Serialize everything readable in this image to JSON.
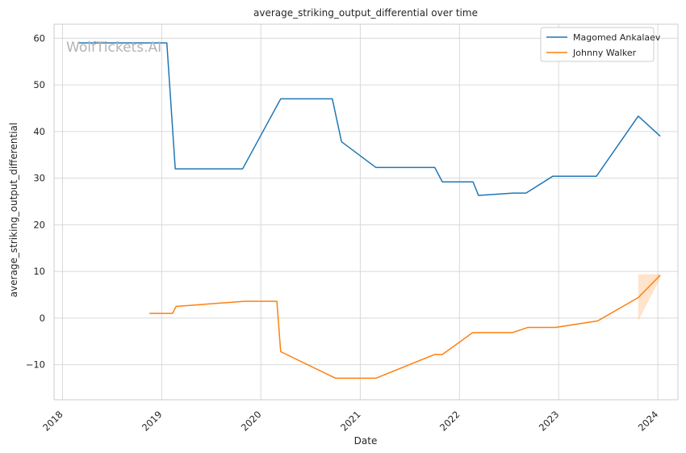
{
  "chart_data": {
    "type": "line",
    "title": "average_striking_output_differential over time",
    "xlabel": "Date",
    "ylabel": "average_striking_output_differential",
    "watermark": "WolfTickets.AI",
    "x_ticks": [
      "2018",
      "2019",
      "2020",
      "2021",
      "2022",
      "2023",
      "2024"
    ],
    "y_ticks": [
      "60",
      "50",
      "40",
      "30",
      "20",
      "10",
      "0",
      "−10"
    ],
    "xlim": [
      "2017-12-01",
      "2024-03-15"
    ],
    "ylim": [
      -17.5,
      63
    ],
    "grid": true,
    "legend_position": "top-right",
    "colors": {
      "ankalaev": "#1f77b4",
      "walker": "#ff7f0e",
      "band": "#ff7f0e",
      "grid": "#d9d9d9",
      "frame": "#cccccc"
    },
    "series": [
      {
        "name": "Magomed Ankalaev",
        "color": "#1f77b4",
        "points": [
          [
            "2018-03-03",
            59.0
          ],
          [
            "2019-01-20",
            59.0
          ],
          [
            "2019-02-20",
            32.0
          ],
          [
            "2019-10-26",
            32.0
          ],
          [
            "2020-03-14",
            47.0
          ],
          [
            "2020-09-20",
            47.0
          ],
          [
            "2020-10-24",
            37.8
          ],
          [
            "2021-02-27",
            32.3
          ],
          [
            "2021-10-02",
            32.3
          ],
          [
            "2021-10-30",
            29.2
          ],
          [
            "2022-02-20",
            29.2
          ],
          [
            "2022-03-12",
            26.3
          ],
          [
            "2022-07-20",
            26.8
          ],
          [
            "2022-09-03",
            26.8
          ],
          [
            "2022-12-10",
            30.4
          ],
          [
            "2023-05-20",
            30.4
          ],
          [
            "2023-10-21",
            43.3
          ],
          [
            "2024-01-10",
            39.0
          ]
        ]
      },
      {
        "name": "Johnny Walker",
        "color": "#ff7f0e",
        "points": [
          [
            "2018-11-17",
            1.0
          ],
          [
            "2019-02-10",
            1.0
          ],
          [
            "2019-02-23",
            2.5
          ],
          [
            "2019-11-02",
            3.6
          ],
          [
            "2020-02-29",
            3.6
          ],
          [
            "2020-03-14",
            -7.2
          ],
          [
            "2020-10-02",
            -12.9
          ],
          [
            "2021-02-27",
            -12.9
          ],
          [
            "2021-10-02",
            -7.8
          ],
          [
            "2021-10-30",
            -7.8
          ],
          [
            "2022-02-19",
            -3.1
          ],
          [
            "2022-07-16",
            -3.1
          ],
          [
            "2022-09-10",
            -2.0
          ],
          [
            "2022-12-20",
            -2.0
          ],
          [
            "2023-05-25",
            -0.6
          ],
          [
            "2023-10-21",
            4.4
          ],
          [
            "2024-01-10",
            9.2
          ]
        ],
        "band": [
          [
            "2023-10-21",
            -0.6,
            9.4
          ],
          [
            "2024-01-10",
            8.6,
            9.4
          ]
        ]
      }
    ]
  }
}
